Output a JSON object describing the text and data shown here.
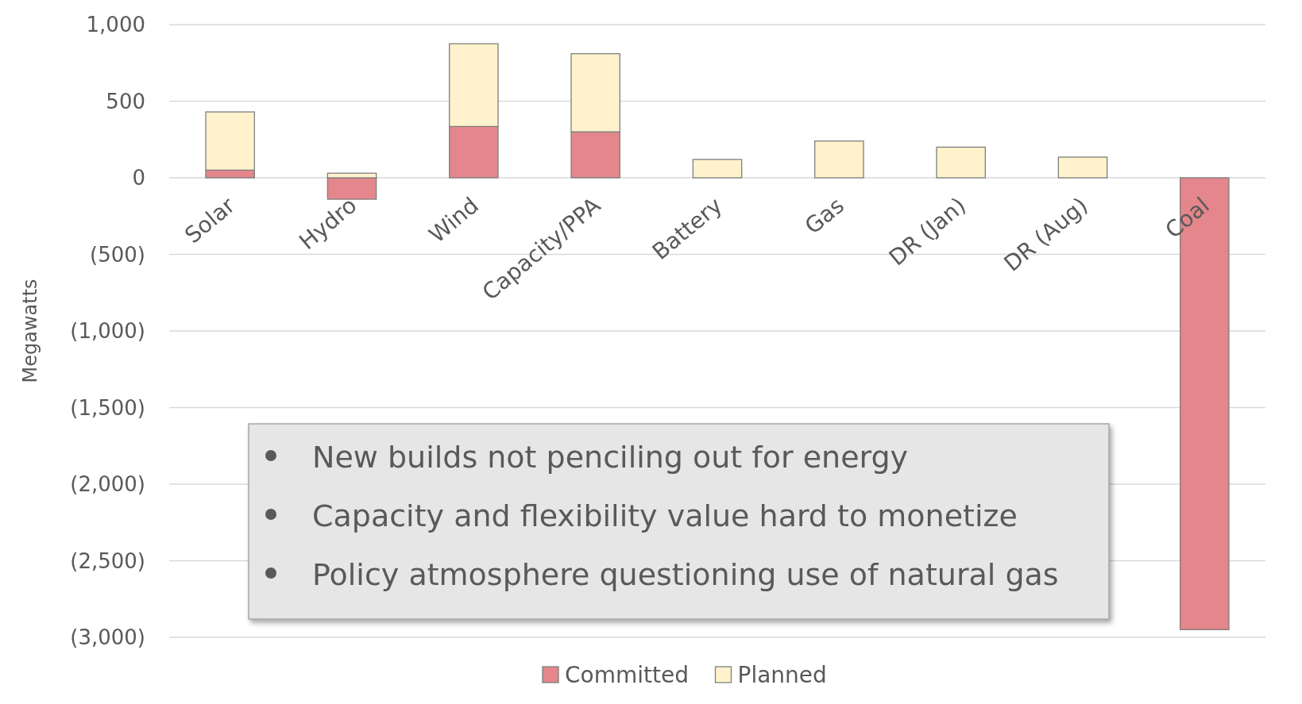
{
  "chart_data": {
    "type": "bar",
    "stacked": true,
    "ylabel": "Megawatts",
    "categories": [
      "Solar",
      "Hydro",
      "Wind",
      "Capacity/PPA",
      "Battery",
      "Gas",
      "DR (Jan)",
      "DR (Aug)",
      "Coal"
    ],
    "series": [
      {
        "name": "Committed",
        "color": "#e4868b",
        "values": [
          50,
          -140,
          335,
          300,
          null,
          null,
          null,
          null,
          -2950
        ]
      },
      {
        "name": "Planned",
        "color": "#fff2cc",
        "values": [
          380,
          30,
          540,
          510,
          120,
          240,
          200,
          135,
          null
        ]
      }
    ],
    "ylim": [
      -3000,
      1000
    ],
    "yticks": [
      {
        "value": 1000,
        "label": "1,000"
      },
      500,
      0,
      {
        "value": -500,
        "label": "(500)"
      },
      {
        "value": -1000,
        "label": "(1,000)"
      },
      {
        "value": -1500,
        "label": "(1,500)"
      },
      {
        "value": -2000,
        "label": "(2,000)"
      },
      {
        "value": -2500,
        "label": "(2,500)"
      },
      {
        "value": -3000,
        "label": "(3,000)"
      }
    ],
    "grid": "y",
    "legend": "bottom",
    "annotations": [
      "New builds not penciling out for energy",
      "Capacity and flexibility value hard to monetize",
      "Policy atmosphere questioning use of natural gas"
    ]
  }
}
